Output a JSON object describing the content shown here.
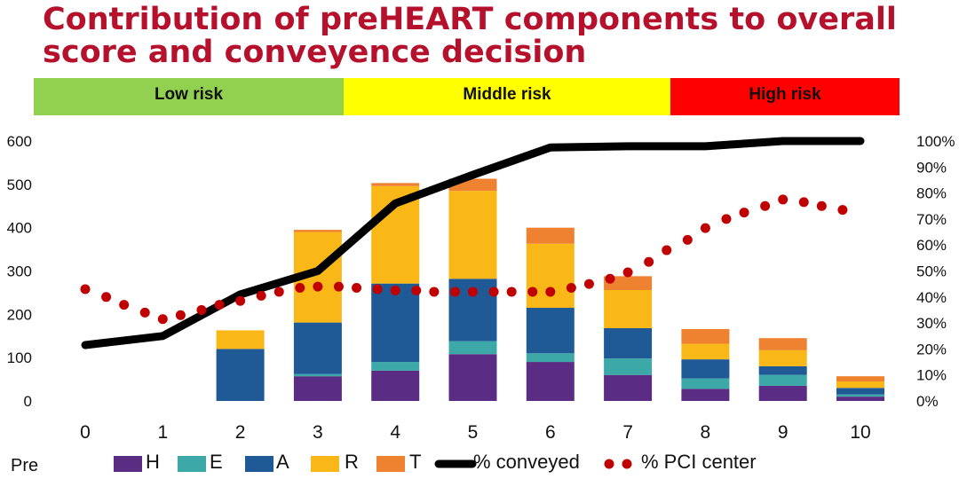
{
  "title_line1": "Contribution of preHEART components to overall",
  "title_line2": "score and conveyence decision",
  "risk_bands": [
    {
      "label": "Low risk",
      "color": "#92d050"
    },
    {
      "label": "Middle risk",
      "color": "#ffff00"
    },
    {
      "label": "High risk",
      "color": "#ff0000"
    }
  ],
  "footer_label": "Pre",
  "chart_data": {
    "type": "bar",
    "stacked": true,
    "categories": [
      "0",
      "1",
      "2",
      "3",
      "4",
      "5",
      "6",
      "7",
      "8",
      "9",
      "10"
    ],
    "y_left": {
      "ylim": [
        0,
        600
      ],
      "ticks": [
        "0",
        "100",
        "200",
        "300",
        "400",
        "500",
        "600"
      ]
    },
    "y_right": {
      "ylim": [
        0,
        100
      ],
      "ticks": [
        "0%",
        "10%",
        "20%",
        "30%",
        "40%",
        "50%",
        "60%",
        "70%",
        "80%",
        "90%",
        "100%"
      ]
    },
    "series": [
      {
        "name": "H",
        "color": "#5b2c83",
        "values": [
          0,
          0,
          0,
          57,
          70,
          108,
          90,
          60,
          28,
          35,
          10
        ]
      },
      {
        "name": "E",
        "color": "#3ca8a8",
        "values": [
          0,
          0,
          0,
          5,
          20,
          30,
          20,
          38,
          24,
          25,
          5
        ]
      },
      {
        "name": "A",
        "color": "#1f5a96",
        "values": [
          0,
          0,
          120,
          119,
          181,
          144,
          105,
          70,
          44,
          20,
          15
        ]
      },
      {
        "name": "R",
        "color": "#f9b718",
        "values": [
          0,
          0,
          43,
          209,
          225,
          203,
          148,
          88,
          36,
          37,
          15
        ]
      },
      {
        "name": "T",
        "color": "#ee8230",
        "values": [
          0,
          0,
          0,
          5,
          7,
          28,
          37,
          32,
          34,
          28,
          12
        ]
      }
    ],
    "lines": [
      {
        "name": "% conveyed",
        "axis": "right",
        "style": "solid",
        "color": "#000000",
        "x": [
          0,
          1,
          2,
          3,
          4,
          5,
          6,
          7,
          8,
          9,
          10
        ],
        "values": [
          21.5,
          25,
          41,
          50,
          76,
          87,
          97.5,
          98,
          98,
          100,
          100
        ]
      },
      {
        "name": "% PCI center",
        "axis": "right",
        "style": "dotted",
        "color": "#c00000",
        "x": [
          0,
          0.27,
          0.5,
          0.77,
          1,
          1.23,
          1.5,
          1.73,
          2,
          2.27,
          2.5,
          2.77,
          3,
          3.27,
          3.5,
          3.77,
          4,
          4.27,
          4.5,
          4.77,
          5,
          5.27,
          5.5,
          5.77,
          6,
          6.27,
          6.5,
          6.77,
          7,
          7.27,
          7.5,
          7.77,
          8,
          8.27,
          8.5,
          8.77,
          9,
          9.27,
          9.5,
          9.77
        ],
        "values": [
          43,
          40,
          37,
          34,
          31.5,
          33,
          35,
          37,
          38.5,
          40.5,
          42,
          43.5,
          44,
          44,
          43.5,
          43,
          42.5,
          42.5,
          42,
          42,
          42,
          42,
          42,
          42,
          42,
          43.5,
          45,
          47,
          49.5,
          53.5,
          58,
          62,
          66.5,
          70,
          72.5,
          75,
          77.5,
          76.5,
          75,
          73.5
        ]
      }
    ],
    "legend_position": "bottom",
    "grid": false
  }
}
